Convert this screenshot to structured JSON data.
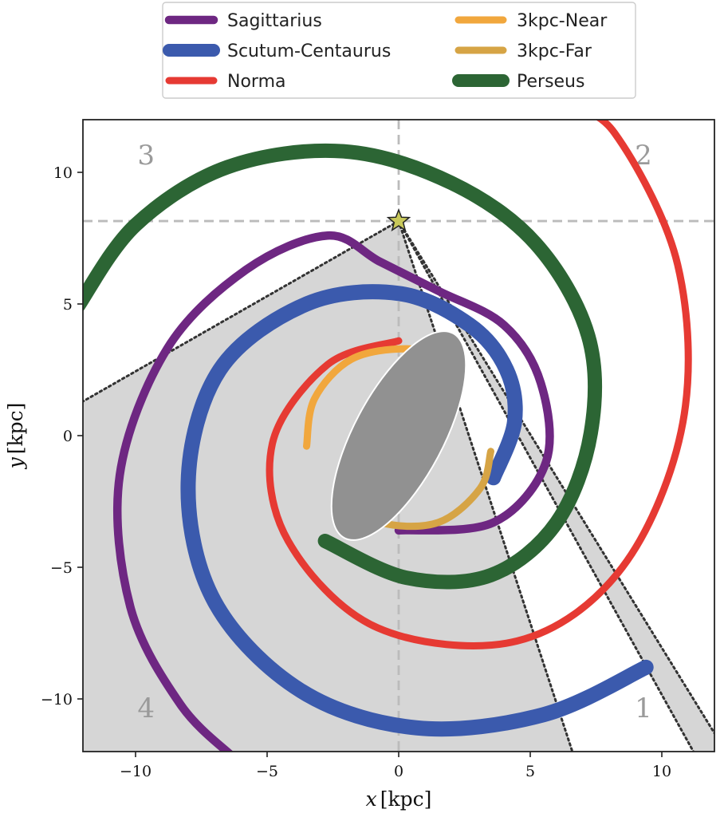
{
  "chart_data": {
    "type": "line",
    "xlabel": "x",
    "xlabel_unit": "[kpc]",
    "ylabel": "y",
    "ylabel_unit": "[kpc]",
    "xlim": [
      -12,
      12
    ],
    "ylim": [
      -12,
      12
    ],
    "xticks": [
      -10,
      -5,
      0,
      5,
      10
    ],
    "xtick_labels": [
      "−10",
      "−5",
      "0",
      "5",
      "10"
    ],
    "yticks": [
      -10,
      -5,
      0,
      5,
      10
    ],
    "ytick_labels": [
      "−10",
      "−5",
      "0",
      "5",
      "10"
    ],
    "grid": false,
    "legend_position": "top-center",
    "sun": {
      "x": 0,
      "y": 8.15,
      "color": "#c8c85a"
    },
    "reference_lines": {
      "x": 0,
      "y": 8.15,
      "style": "dashed",
      "color": "#bbbbbb"
    },
    "quadrant_labels": [
      {
        "text": "1",
        "x": 9.3,
        "y": -10.7
      },
      {
        "text": "2",
        "x": 9.3,
        "y": 10.3
      },
      {
        "text": "3",
        "x": -9.6,
        "y": 10.3
      },
      {
        "text": "4",
        "x": -9.6,
        "y": -10.7
      }
    ],
    "shaded_regions": [
      {
        "color": "#d6d6d6",
        "points": [
          [
            0,
            8.15
          ],
          [
            -12,
            1.3
          ],
          [
            -12,
            -12
          ],
          [
            6.6,
            -12
          ]
        ]
      },
      {
        "color": "#d6d6d6",
        "points": [
          [
            0,
            8.15
          ],
          [
            11.2,
            -12
          ],
          [
            12,
            -12
          ],
          [
            12,
            -11.3
          ]
        ]
      }
    ],
    "dotted_lines": [
      {
        "points": [
          [
            0,
            8.15
          ],
          [
            -12,
            1.3
          ]
        ]
      },
      {
        "points": [
          [
            0,
            8.15
          ],
          [
            6.6,
            -12
          ]
        ]
      },
      {
        "points": [
          [
            0,
            8.15
          ],
          [
            11.2,
            -12
          ]
        ]
      },
      {
        "points": [
          [
            0,
            8.15
          ],
          [
            12,
            -11.3
          ]
        ]
      }
    ],
    "bar": {
      "center": [
        0,
        0
      ],
      "semi_major": 4.4,
      "semi_minor": 1.7,
      "angle_deg": 62,
      "fill": "#919191",
      "stroke": "#ffffff"
    },
    "series": [
      {
        "name": "Norma",
        "color": "#e63a33",
        "width": 3,
        "points": [
          [
            0,
            3.6
          ],
          [
            -2.7,
            2.7
          ],
          [
            -4.8,
            -0.3
          ],
          [
            -4.2,
            -4
          ],
          [
            -0.8,
            -7.3
          ],
          [
            4.5,
            -7.8
          ],
          [
            8.5,
            -5
          ],
          [
            10.8,
            0.5
          ],
          [
            10.6,
            6.5
          ],
          [
            8.2,
            11.5
          ],
          [
            6.3,
            12.5
          ]
        ]
      },
      {
        "name": "Perseus",
        "color": "#2c6534",
        "width": 5,
        "points": [
          [
            -2.8,
            -4
          ],
          [
            0.3,
            -5.4
          ],
          [
            3.5,
            -5.3
          ],
          [
            6,
            -3.3
          ],
          [
            7.3,
            0.1
          ],
          [
            7.2,
            3.8
          ],
          [
            5.2,
            7.3
          ],
          [
            2,
            9.6
          ],
          [
            -2.1,
            10.8
          ],
          [
            -6.5,
            10.2
          ],
          [
            -10,
            8
          ],
          [
            -12.2,
            4.9
          ]
        ]
      },
      {
        "name": "Scutum-Centaurus",
        "color": "#3b5aad",
        "width": 6,
        "points": [
          [
            3.6,
            -1.6
          ],
          [
            4.4,
            0.5
          ],
          [
            4.1,
            2.5
          ],
          [
            2.7,
            4.2
          ],
          [
            0,
            5.4
          ],
          [
            -3.5,
            5
          ],
          [
            -6.8,
            2.5
          ],
          [
            -8,
            -1.8
          ],
          [
            -7,
            -6.3
          ],
          [
            -3.7,
            -9.7
          ],
          [
            0.7,
            -11.1
          ],
          [
            5.5,
            -10.6
          ],
          [
            9.4,
            -8.8
          ]
        ]
      },
      {
        "name": "Sagittarius",
        "color": "#6e2782",
        "width": 4,
        "points": [
          [
            0,
            -3.6
          ],
          [
            3.6,
            -3.3
          ],
          [
            5.6,
            -1
          ],
          [
            5.4,
            2
          ],
          [
            4,
            4.2
          ],
          [
            1.5,
            5.5
          ],
          [
            -0.7,
            6.6
          ],
          [
            -2.7,
            7.6
          ],
          [
            -5.8,
            6.3
          ],
          [
            -8.8,
            3.3
          ],
          [
            -10.6,
            -1.5
          ],
          [
            -10.2,
            -6.5
          ],
          [
            -8.3,
            -10.2
          ],
          [
            -6.3,
            -12.2
          ]
        ]
      },
      {
        "name": "3kpc-Near",
        "color": "#f1a73d",
        "width": 3,
        "points": [
          [
            -3.5,
            -0.4
          ],
          [
            -3.2,
            1.4
          ],
          [
            -1.8,
            2.9
          ],
          [
            0.3,
            3.3
          ],
          [
            2,
            2.9
          ],
          [
            2.3,
            2.5
          ]
        ]
      },
      {
        "name": "3kpc-Far",
        "color": "#d6a445",
        "width": 3,
        "points": [
          [
            -2.4,
            -2.3
          ],
          [
            -0.7,
            -3.3
          ],
          [
            1.5,
            -3.3
          ],
          [
            3.1,
            -2
          ],
          [
            3.5,
            -0.6
          ]
        ]
      }
    ],
    "legend_order": [
      "Sagittarius",
      "Scutum-Centaurus",
      "Norma",
      "3kpc-Near",
      "3kpc-Far",
      "Perseus"
    ]
  }
}
